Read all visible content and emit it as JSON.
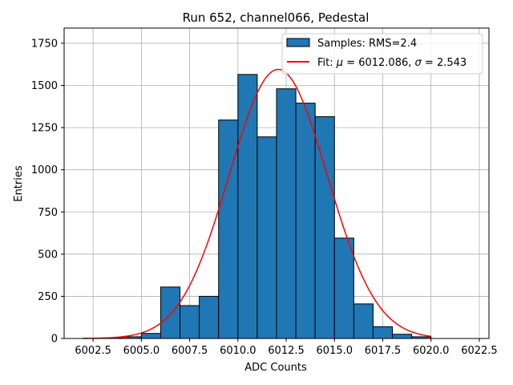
{
  "chart_data": {
    "type": "bar",
    "title": "Run 652, channel066, Pedestal",
    "xlabel": "ADC Counts",
    "ylabel": "Entries",
    "xlim": [
      6001.0,
      6023.0
    ],
    "ylim": [
      0,
      1840
    ],
    "xticks": [
      6002.5,
      6005.0,
      6007.5,
      6010.0,
      6012.5,
      6015.0,
      6017.5,
      6020.0,
      6022.5
    ],
    "xtick_labels": [
      "6002.5",
      "6005.0",
      "6007.5",
      "6010.0",
      "6012.5",
      "6015.0",
      "6017.5",
      "6020.0",
      "6022.5"
    ],
    "yticks": [
      0,
      250,
      500,
      750,
      1000,
      1250,
      1500,
      1750
    ],
    "ytick_labels": [
      "0",
      "250",
      "500",
      "750",
      "1000",
      "1250",
      "1500",
      "1750"
    ],
    "grid": true,
    "legend_placement": "top-right",
    "histogram": {
      "name": "Samples: RMS=2.4",
      "color": "#1f77b4",
      "edgecolor": "#000000",
      "bin_edges": [
        6002.0,
        6003.0,
        6004.0,
        6005.0,
        6006.0,
        6007.0,
        6008.0,
        6009.0,
        6010.0,
        6011.0,
        6012.0,
        6013.0,
        6014.0,
        6015.0,
        6016.0,
        6017.0,
        6018.0,
        6019.0,
        6020.0
      ],
      "counts": [
        2,
        3,
        10,
        30,
        305,
        195,
        250,
        1295,
        1565,
        1195,
        1480,
        1395,
        1315,
        595,
        205,
        70,
        25,
        10
      ]
    },
    "fit": {
      "name_prefix": "Fit: ",
      "mu_symbol": "μ",
      "equals": " = ",
      "mu": 6012.086,
      "sep": ", ",
      "sigma_symbol": "σ",
      "sigma": 2.543,
      "mu_text": "6012.086",
      "sigma_text": "2.543",
      "amplitude": 1595,
      "x_range": [
        6002.0,
        6020.0
      ],
      "color": "#ff0000"
    }
  }
}
